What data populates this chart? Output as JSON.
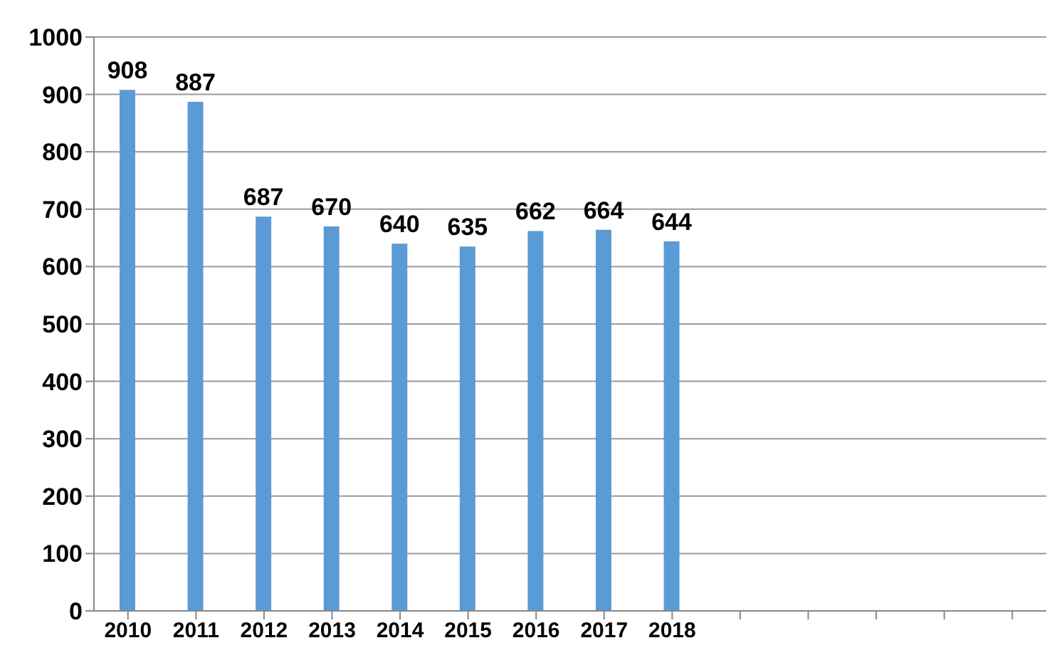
{
  "chart_data": {
    "type": "bar",
    "categories": [
      "2010",
      "2011",
      "2012",
      "2013",
      "2014",
      "2015",
      "2016",
      "2017",
      "2018",
      null,
      null,
      null,
      null,
      null
    ],
    "values": [
      908,
      887,
      687,
      670,
      640,
      635,
      662,
      664,
      644,
      null,
      null,
      null,
      null,
      null
    ],
    "color": "#5b9bd5",
    "ylim": [
      0,
      1000
    ],
    "yticks": [
      0,
      100,
      200,
      300,
      400,
      500,
      600,
      700,
      800,
      900,
      1000
    ],
    "grid": "y",
    "data_labels": true
  }
}
